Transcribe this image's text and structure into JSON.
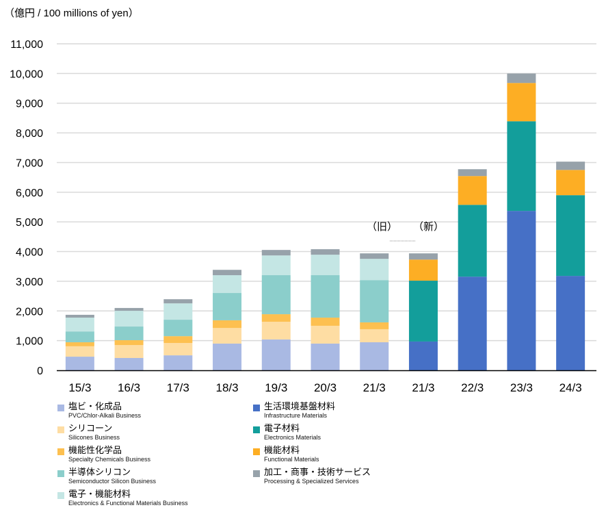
{
  "chart_data": {
    "type": "bar",
    "stacked": true,
    "title": "",
    "unit_label": "（億円 / 100 millions of yen）",
    "xlabel": "",
    "ylabel": "",
    "ylim": [
      0,
      11000
    ],
    "yticks": [
      0,
      1000,
      2000,
      3000,
      4000,
      5000,
      6000,
      7000,
      8000,
      9000,
      10000,
      11000
    ],
    "ytick_labels": [
      "0",
      "1,000",
      "2,000",
      "3,000",
      "4,000",
      "5,000",
      "6,000",
      "7,000",
      "8,000",
      "9,000",
      "10,000",
      "11,000"
    ],
    "grid": true,
    "categories": [
      "15/3",
      "16/3",
      "17/3",
      "18/3",
      "19/3",
      "20/3",
      "21/3",
      "21/3",
      "22/3",
      "23/3",
      "24/3"
    ],
    "annotations": [
      {
        "text": "（旧）",
        "category_index": 6
      },
      {
        "text": "（新）",
        "category_index": 7
      }
    ],
    "series": [
      {
        "name": "塩ビ・化成品",
        "name_en": "PVC/Chlor-Alkali Business",
        "color": "#a9b9e3",
        "values": [
          460,
          415,
          505,
          900,
          1040,
          900,
          945,
          0,
          0,
          0,
          0
        ]
      },
      {
        "name": "シリコーン",
        "name_en": "Silicones Business",
        "color": "#fedda3",
        "values": [
          350,
          435,
          415,
          525,
          595,
          600,
          440,
          0,
          0,
          0,
          0
        ]
      },
      {
        "name": "機能性化学品",
        "name_en": "Specialty Chemicals Business",
        "color": "#fdc050",
        "values": [
          135,
          165,
          230,
          260,
          255,
          275,
          230,
          0,
          0,
          0,
          0
        ]
      },
      {
        "name": "半導体シリコン",
        "name_en": "Semiconductor Silicon Business",
        "color": "#8bcecb",
        "values": [
          365,
          460,
          555,
          920,
          1315,
          1430,
          1425,
          0,
          0,
          0,
          0
        ]
      },
      {
        "name": "電子・機能材料",
        "name_en": "Electronics & Functional Materials Business",
        "color": "#c4e6e4",
        "values": [
          465,
          530,
          550,
          600,
          665,
          690,
          715,
          0,
          0,
          0,
          0
        ]
      },
      {
        "name": "生活環境基盤材料",
        "name_en": "Infrastructure Materials",
        "color": "#4670c6",
        "values": [
          0,
          0,
          0,
          0,
          0,
          0,
          0,
          970,
          3155,
          5370,
          3180
        ]
      },
      {
        "name": "電子材料",
        "name_en": "Electronics Materials",
        "color": "#139e9b",
        "values": [
          0,
          0,
          0,
          0,
          0,
          0,
          0,
          2050,
          2420,
          3020,
          2720
        ]
      },
      {
        "name": "機能材料",
        "name_en": "Functional Materials",
        "color": "#fdae24",
        "values": [
          0,
          0,
          0,
          0,
          0,
          0,
          0,
          710,
          970,
          1290,
          850
        ]
      },
      {
        "name": "加工・商事・技術サービス",
        "name_en": "Processing & Specialized Services",
        "color": "#97a2aa",
        "values": [
          95,
          95,
          140,
          180,
          185,
          185,
          185,
          210,
          230,
          320,
          280
        ]
      }
    ],
    "legend_position": "bottom"
  }
}
